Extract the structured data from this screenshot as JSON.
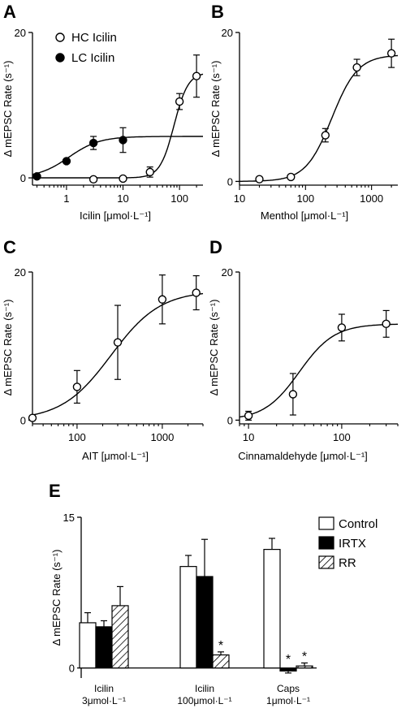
{
  "panels": {
    "A": {
      "label": "A",
      "xlabel": "Icilin [μmol·L⁻¹]",
      "ylabel": "Δ mEPSC Rate (s⁻¹)",
      "xscale": "log",
      "xlim": [
        0.25,
        260
      ],
      "ylim": [
        -1,
        20
      ],
      "xticks": [
        {
          "v": 1,
          "t": "1"
        },
        {
          "v": 10,
          "t": "10"
        },
        {
          "v": 100,
          "t": "100"
        }
      ],
      "yticks": [
        {
          "v": 0,
          "t": "0"
        },
        {
          "v": 20,
          "t": "20"
        }
      ],
      "legend": [
        {
          "key": "hc",
          "text": "HC Icilin",
          "marker": "open-circle"
        },
        {
          "key": "lc",
          "text": "LC Icilin",
          "marker": "filled-circle"
        }
      ]
    },
    "B": {
      "label": "B",
      "xlabel": "Menthol [μmol·L⁻¹]",
      "ylabel": "Δ mEPSC Rate (s⁻¹)",
      "xscale": "log",
      "xlim": [
        10,
        2500
      ],
      "ylim": [
        -0.5,
        20
      ],
      "xticks": [
        {
          "v": 10,
          "t": "10"
        },
        {
          "v": 100,
          "t": "100"
        },
        {
          "v": 1000,
          "t": "1000"
        }
      ],
      "yticks": [
        {
          "v": 0,
          "t": "0"
        },
        {
          "v": 20,
          "t": "20"
        }
      ]
    },
    "C": {
      "label": "C",
      "xlabel": "AIT [μmol·L⁻¹]",
      "ylabel": "Δ mEPSC Rate (s⁻¹)",
      "xscale": "log",
      "xlim": [
        30,
        3000
      ],
      "ylim": [
        -0.5,
        20
      ],
      "xticks": [
        {
          "v": 100,
          "t": "100"
        },
        {
          "v": 1000,
          "t": "1000"
        }
      ],
      "yticks": [
        {
          "v": 0,
          "t": "0"
        },
        {
          "v": 20,
          "t": "20"
        }
      ]
    },
    "D": {
      "label": "D",
      "xlabel": "Cinnamaldehyde [μmol·L⁻¹]",
      "ylabel": "Δ mEPSC Rate (s⁻¹)",
      "xscale": "log",
      "xlim": [
        8,
        400
      ],
      "ylim": [
        -0.5,
        20
      ],
      "xticks": [
        {
          "v": 10,
          "t": "10"
        },
        {
          "v": 100,
          "t": "100"
        }
      ],
      "yticks": [
        {
          "v": 0,
          "t": "0"
        },
        {
          "v": 20,
          "t": "20"
        }
      ]
    },
    "E": {
      "label": "E",
      "ylabel": "Δ mEPSC Rate (s⁻¹)",
      "ylim": [
        -1,
        15
      ],
      "yticks": [
        {
          "v": 0,
          "t": "0"
        },
        {
          "v": 15,
          "t": "15"
        }
      ],
      "groups": [
        {
          "line1": "Icilin",
          "line2": "3μmol·L⁻¹"
        },
        {
          "line1": "Icilin",
          "line2": "100μmol·L⁻¹"
        },
        {
          "line1": "Caps",
          "line2": "1μmol·L⁻¹"
        }
      ],
      "legend": [
        {
          "key": "control",
          "text": "Control",
          "fill": "open"
        },
        {
          "key": "irtx",
          "text": "IRTX",
          "fill": "solid"
        },
        {
          "key": "rr",
          "text": "RR",
          "fill": "hatched"
        }
      ]
    }
  },
  "chart_data": [
    {
      "type": "scatter",
      "panel": "A",
      "title": "",
      "xlabel": "Icilin [μmol·L⁻¹]",
      "ylabel": "Δ mEPSC Rate (s⁻¹)",
      "x_scale": "log",
      "series": [
        {
          "name": "HC Icilin",
          "marker": "open",
          "fit": {
            "bottom": 0,
            "top": 14.5,
            "ec50": 80,
            "hill": 3.5
          },
          "points": [
            {
              "x": 3,
              "y": -0.2,
              "err": 0
            },
            {
              "x": 10,
              "y": -0.1,
              "err": 0
            },
            {
              "x": 30,
              "y": 0.8,
              "err": 0.7
            },
            {
              "x": 100,
              "y": 10.5,
              "err": 1.1
            },
            {
              "x": 200,
              "y": 14,
              "err": 2.9
            }
          ]
        },
        {
          "name": "LC Icilin",
          "marker": "filled",
          "fit": {
            "bottom": 0,
            "top": 5.7,
            "ec50": 1.1,
            "hill": 1.6
          },
          "points": [
            {
              "x": 0.3,
              "y": 0.2,
              "err": 0
            },
            {
              "x": 1,
              "y": 2.3,
              "err": 0
            },
            {
              "x": 3,
              "y": 4.8,
              "err": 0.9
            },
            {
              "x": 10,
              "y": 5.2,
              "err": 1.7
            }
          ]
        }
      ]
    },
    {
      "type": "scatter",
      "panel": "B",
      "title": "",
      "xlabel": "Menthol [μmol·L⁻¹]",
      "ylabel": "Δ mEPSC Rate (s⁻¹)",
      "x_scale": "log",
      "series": [
        {
          "marker": "open",
          "fit": {
            "bottom": 0,
            "top": 17,
            "ec50": 250,
            "hill": 2.2
          },
          "points": [
            {
              "x": 20,
              "y": 0.3,
              "err": 0
            },
            {
              "x": 60,
              "y": 0.6,
              "err": 0
            },
            {
              "x": 200,
              "y": 6.2,
              "err": 0.9
            },
            {
              "x": 600,
              "y": 15.3,
              "err": 1.1
            },
            {
              "x": 2000,
              "y": 17.2,
              "err": 1.9
            }
          ]
        }
      ]
    },
    {
      "type": "scatter",
      "panel": "C",
      "title": "",
      "xlabel": "AIT [μmol·L⁻¹]",
      "ylabel": "Δ mEPSC Rate (s⁻¹)",
      "x_scale": "log",
      "series": [
        {
          "marker": "open",
          "fit": {
            "bottom": 0,
            "top": 17.5,
            "ec50": 250,
            "hill": 1.5
          },
          "points": [
            {
              "x": 30,
              "y": 0.3,
              "err": 0
            },
            {
              "x": 100,
              "y": 4.5,
              "err": 2.2
            },
            {
              "x": 300,
              "y": 10.5,
              "err": 5
            },
            {
              "x": 1000,
              "y": 16.3,
              "err": 3.3
            },
            {
              "x": 2500,
              "y": 17.2,
              "err": 2.3
            }
          ]
        }
      ]
    },
    {
      "type": "scatter",
      "panel": "D",
      "title": "",
      "xlabel": "Cinnamaldehyde [μmol·L⁻¹]",
      "ylabel": "Δ mEPSC Rate (s⁻¹)",
      "x_scale": "log",
      "series": [
        {
          "marker": "open",
          "fit": {
            "bottom": 0,
            "top": 13,
            "ec50": 35,
            "hill": 2.3
          },
          "points": [
            {
              "x": 10,
              "y": 0.6,
              "err": 0.6
            },
            {
              "x": 30,
              "y": 3.5,
              "err": 2.8
            },
            {
              "x": 100,
              "y": 12.5,
              "err": 1.8
            },
            {
              "x": 300,
              "y": 13,
              "err": 1.8
            }
          ]
        }
      ]
    },
    {
      "type": "bar",
      "panel": "E",
      "title": "",
      "ylabel": "Δ mEPSC Rate (s⁻¹)",
      "categories": [
        "Icilin 3μmol·L⁻¹",
        "Icilin 100μmol·L⁻¹",
        "Caps 1μmol·L⁻¹"
      ],
      "ylim": [
        -1,
        15
      ],
      "series": [
        {
          "name": "Control",
          "values": [
            4.5,
            10.1,
            11.8
          ],
          "errors": [
            1.0,
            1.1,
            1.1
          ]
        },
        {
          "name": "IRTX",
          "values": [
            4.1,
            9.1,
            -0.3
          ],
          "errors": [
            0.6,
            3.7,
            0.2
          ]
        },
        {
          "name": "RR",
          "values": [
            6.2,
            1.3,
            0.2
          ],
          "errors": [
            1.9,
            0.3,
            0.3
          ]
        }
      ],
      "significance": [
        {
          "category": "Icilin 100μmol·L⁻¹",
          "series": "RR",
          "mark": "*"
        },
        {
          "category": "Caps 1μmol·L⁻¹",
          "series": "IRTX",
          "mark": "*"
        },
        {
          "category": "Caps 1μmol·L⁻¹",
          "series": "RR",
          "mark": "*"
        }
      ]
    }
  ]
}
